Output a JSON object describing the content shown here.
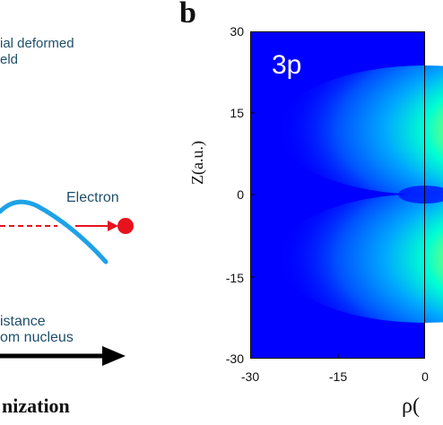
{
  "panel_a": {
    "field_label_line1": "ial deformed",
    "field_label_line2": "eld",
    "electron_label": "Electron",
    "distance_label_line1": "istance",
    "distance_label_line2": "om nucleus",
    "caption": "nization",
    "colors": {
      "curve": "#1ea2e6",
      "electron": "#e8121e",
      "arrow": "#000000"
    }
  },
  "panel_b": {
    "letter": "b",
    "state_label": "3p",
    "ylabel": "Z(a.u.)",
    "xlabel": "ρ(",
    "y_ticks": [
      "30",
      "15",
      "0",
      "-15",
      "-30"
    ],
    "x_ticks": [
      "-30",
      "-15",
      "0"
    ],
    "chart_data": {
      "type": "heatmap",
      "title": "3p",
      "xlabel": "ρ(",
      "ylabel": "Z(a.u.)",
      "xlim": [
        -30,
        0
      ],
      "ylim": [
        -30,
        30
      ],
      "colormap": "jet",
      "grid": false,
      "lobes": [
        {
          "z_center": 12,
          "rho_peak": 0,
          "intensity": "max"
        },
        {
          "z_center": -12,
          "rho_peak": 0,
          "intensity": "max"
        }
      ]
    }
  }
}
